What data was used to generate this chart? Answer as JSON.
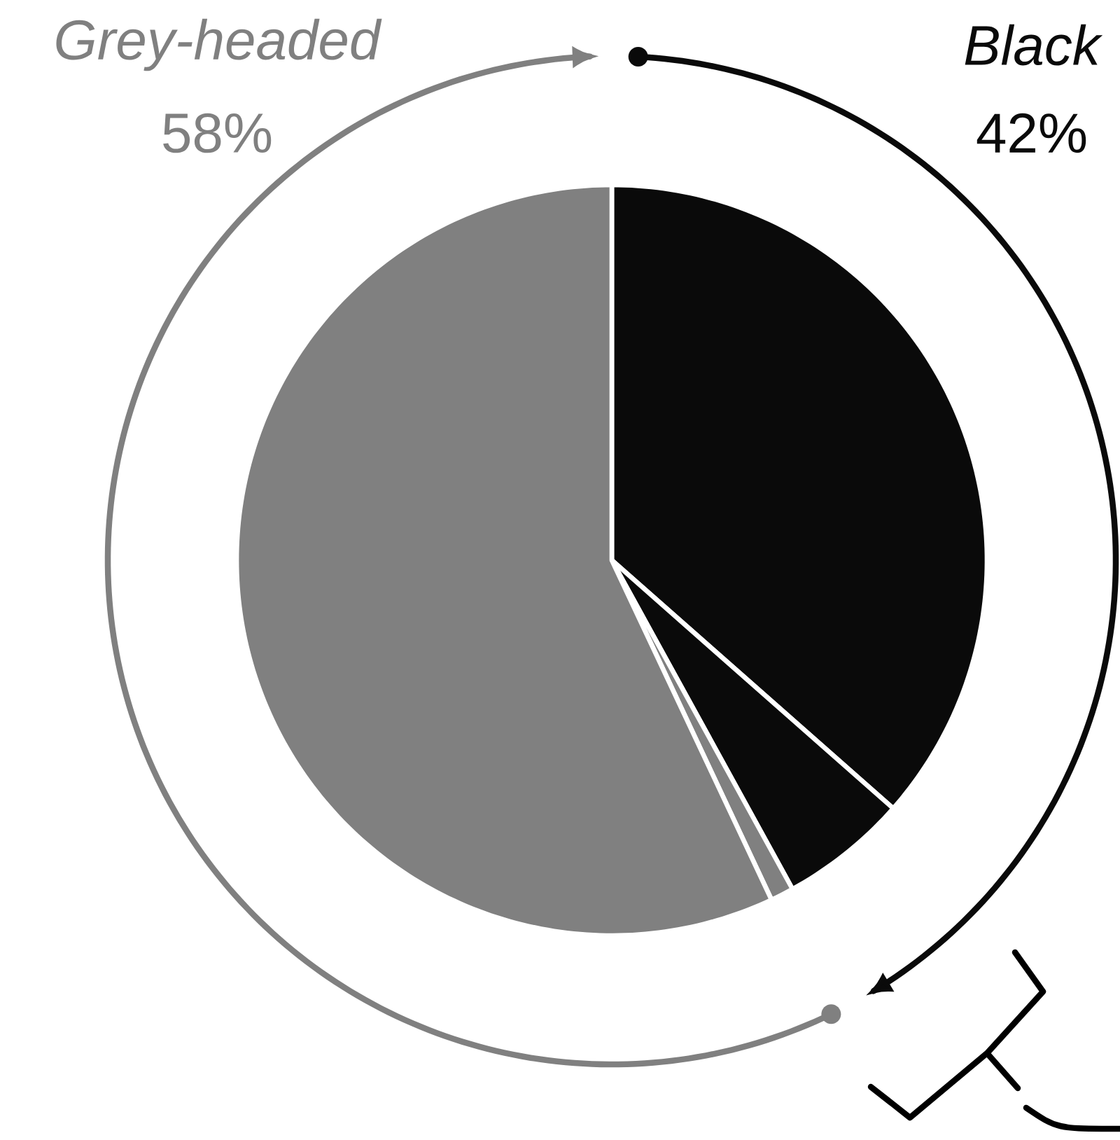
{
  "chart_data": {
    "type": "pie",
    "categories": [
      "Black",
      null,
      null,
      "Grey-headed"
    ],
    "values": [
      36.5,
      5.5,
      1,
      57
    ],
    "colors": [
      "#0a0a0a",
      "#0a0a0a",
      "#808080",
      "#808080"
    ],
    "annotations": [
      "42%",
      "58%"
    ]
  }
}
